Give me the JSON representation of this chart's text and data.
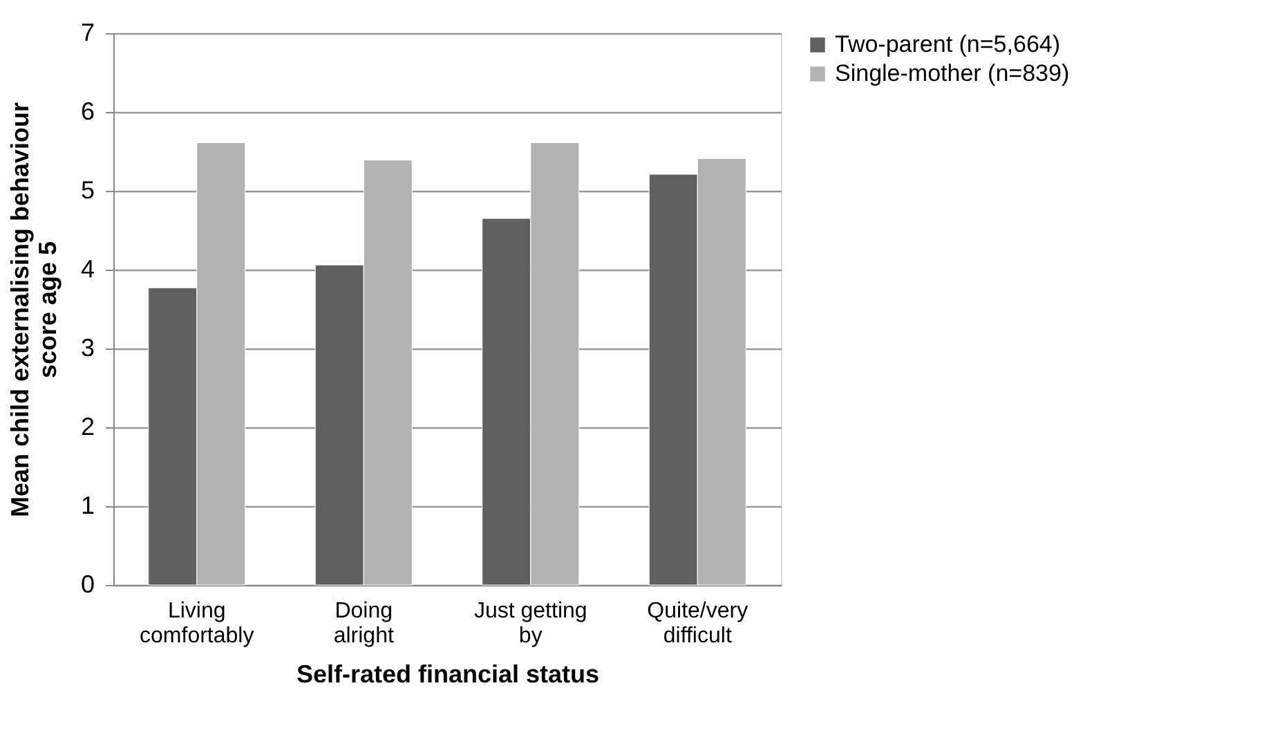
{
  "chart_data": {
    "type": "bar",
    "xlabel": "Self-rated financial status",
    "ylabel": "Mean child externalising behaviour\nscore age 5",
    "categories": [
      "Living\ncomfortably",
      "Doing\nalright",
      "Just getting\nby",
      "Quite/very\ndifficult"
    ],
    "series": [
      {
        "name": "Two-parent (n=5,664)",
        "color": "#606060",
        "values": [
          3.77,
          4.06,
          4.65,
          5.21
        ]
      },
      {
        "name": "Single-mother (n=839)",
        "color": "#b2b2b2",
        "values": [
          5.61,
          5.39,
          5.61,
          5.41
        ]
      }
    ],
    "ylim": [
      0,
      7
    ],
    "yticks": [
      0,
      1,
      2,
      3,
      4,
      5,
      6,
      7
    ],
    "grid": "y",
    "legend": "right"
  }
}
